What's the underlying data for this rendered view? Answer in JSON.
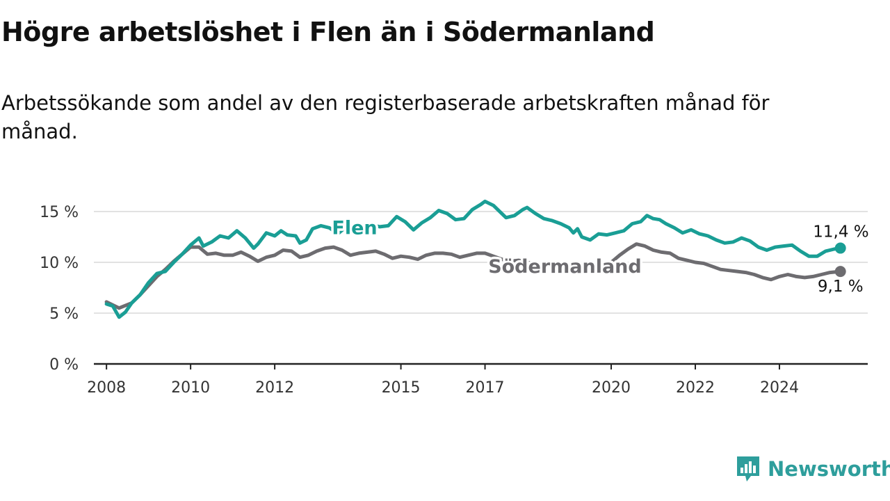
{
  "title": "Högre arbetslöshet i Flen än i Södermanland",
  "subtitle": "Arbetssökande som andel av den registerbaserade arbetskraften månad för månad.",
  "brand": {
    "name": "Newsworthy",
    "icon": "newsworthy-logo-icon",
    "color": "#2e9e9c"
  },
  "chart_data": {
    "type": "line",
    "title": "Högre arbetslöshet i Flen än i Södermanland",
    "subtitle": "Arbetssökande som andel av den registerbaserade arbetskraften månad för månad.",
    "x_ticks": [
      2008,
      2010,
      2012,
      2015,
      2017,
      2020,
      2022,
      2024
    ],
    "y_ticks": [
      0,
      5,
      10,
      15
    ],
    "y_tick_labels": [
      "0 %",
      "5 %",
      "10 %",
      "15 %"
    ],
    "xlim": [
      2007.7,
      2026.1
    ],
    "ylim": [
      0,
      15
    ],
    "grid": true,
    "legend": "inline labels",
    "series": [
      {
        "name": "Flen",
        "color": "#1a9e95",
        "end_label": "11,4 %",
        "points": [
          [
            2008.0,
            5.9
          ],
          [
            2008.15,
            5.7
          ],
          [
            2008.3,
            4.6
          ],
          [
            2008.45,
            5.1
          ],
          [
            2008.6,
            6.0
          ],
          [
            2008.8,
            6.8
          ],
          [
            2009.0,
            8.0
          ],
          [
            2009.2,
            8.9
          ],
          [
            2009.4,
            9.1
          ],
          [
            2009.6,
            10.0
          ],
          [
            2009.8,
            10.8
          ],
          [
            2010.0,
            11.7
          ],
          [
            2010.2,
            12.4
          ],
          [
            2010.3,
            11.6
          ],
          [
            2010.5,
            12.0
          ],
          [
            2010.7,
            12.6
          ],
          [
            2010.9,
            12.4
          ],
          [
            2011.1,
            13.1
          ],
          [
            2011.3,
            12.4
          ],
          [
            2011.5,
            11.4
          ],
          [
            2011.6,
            11.8
          ],
          [
            2011.8,
            12.9
          ],
          [
            2012.0,
            12.6
          ],
          [
            2012.15,
            13.1
          ],
          [
            2012.3,
            12.7
          ],
          [
            2012.5,
            12.6
          ],
          [
            2012.6,
            11.9
          ],
          [
            2012.75,
            12.2
          ],
          [
            2012.9,
            13.3
          ],
          [
            2013.1,
            13.6
          ],
          [
            2013.3,
            13.4
          ],
          [
            2013.5,
            12.8
          ],
          [
            2013.7,
            13.5
          ],
          [
            2013.9,
            13.3
          ],
          [
            2014.1,
            13.4
          ],
          [
            2014.3,
            13.7
          ],
          [
            2014.5,
            13.5
          ],
          [
            2014.7,
            13.6
          ],
          [
            2014.9,
            14.5
          ],
          [
            2015.1,
            14.0
          ],
          [
            2015.3,
            13.2
          ],
          [
            2015.5,
            13.9
          ],
          [
            2015.7,
            14.4
          ],
          [
            2015.9,
            15.1
          ],
          [
            2016.1,
            14.8
          ],
          [
            2016.3,
            14.2
          ],
          [
            2016.5,
            14.3
          ],
          [
            2016.7,
            15.2
          ],
          [
            2016.9,
            15.7
          ],
          [
            2017.0,
            16.0
          ],
          [
            2017.2,
            15.6
          ],
          [
            2017.4,
            14.8
          ],
          [
            2017.5,
            14.4
          ],
          [
            2017.7,
            14.6
          ],
          [
            2017.9,
            15.2
          ],
          [
            2018.0,
            15.4
          ],
          [
            2018.2,
            14.8
          ],
          [
            2018.4,
            14.3
          ],
          [
            2018.6,
            14.1
          ],
          [
            2018.8,
            13.8
          ],
          [
            2019.0,
            13.4
          ],
          [
            2019.1,
            12.9
          ],
          [
            2019.2,
            13.3
          ],
          [
            2019.3,
            12.5
          ],
          [
            2019.5,
            12.2
          ],
          [
            2019.7,
            12.8
          ],
          [
            2019.9,
            12.7
          ],
          [
            2020.1,
            12.9
          ],
          [
            2020.3,
            13.1
          ],
          [
            2020.5,
            13.8
          ],
          [
            2020.7,
            14.0
          ],
          [
            2020.85,
            14.6
          ],
          [
            2021.0,
            14.3
          ],
          [
            2021.15,
            14.2
          ],
          [
            2021.3,
            13.8
          ],
          [
            2021.5,
            13.4
          ],
          [
            2021.7,
            12.9
          ],
          [
            2021.9,
            13.2
          ],
          [
            2022.1,
            12.8
          ],
          [
            2022.3,
            12.6
          ],
          [
            2022.5,
            12.2
          ],
          [
            2022.7,
            11.9
          ],
          [
            2022.9,
            12.0
          ],
          [
            2023.1,
            12.4
          ],
          [
            2023.3,
            12.1
          ],
          [
            2023.5,
            11.5
          ],
          [
            2023.7,
            11.2
          ],
          [
            2023.9,
            11.5
          ],
          [
            2024.1,
            11.6
          ],
          [
            2024.3,
            11.7
          ],
          [
            2024.5,
            11.1
          ],
          [
            2024.7,
            10.6
          ],
          [
            2024.9,
            10.6
          ],
          [
            2025.1,
            11.1
          ],
          [
            2025.3,
            11.3
          ],
          [
            2025.45,
            11.4
          ]
        ]
      },
      {
        "name": "Södermanland",
        "color": "#6d6c70",
        "end_label": "9,1 %",
        "points": [
          [
            2008.0,
            6.1
          ],
          [
            2008.3,
            5.5
          ],
          [
            2008.6,
            6.0
          ],
          [
            2008.8,
            6.8
          ],
          [
            2009.0,
            7.7
          ],
          [
            2009.2,
            8.6
          ],
          [
            2009.4,
            9.3
          ],
          [
            2009.6,
            10.1
          ],
          [
            2009.8,
            10.8
          ],
          [
            2010.0,
            11.5
          ],
          [
            2010.2,
            11.5
          ],
          [
            2010.4,
            10.8
          ],
          [
            2010.6,
            10.9
          ],
          [
            2010.8,
            10.7
          ],
          [
            2011.0,
            10.7
          ],
          [
            2011.2,
            11.0
          ],
          [
            2011.4,
            10.6
          ],
          [
            2011.6,
            10.1
          ],
          [
            2011.8,
            10.5
          ],
          [
            2012.0,
            10.7
          ],
          [
            2012.2,
            11.2
          ],
          [
            2012.4,
            11.1
          ],
          [
            2012.6,
            10.5
          ],
          [
            2012.8,
            10.7
          ],
          [
            2013.0,
            11.1
          ],
          [
            2013.2,
            11.4
          ],
          [
            2013.4,
            11.5
          ],
          [
            2013.6,
            11.2
          ],
          [
            2013.8,
            10.7
          ],
          [
            2014.0,
            10.9
          ],
          [
            2014.2,
            11.0
          ],
          [
            2014.4,
            11.1
          ],
          [
            2014.6,
            10.8
          ],
          [
            2014.8,
            10.4
          ],
          [
            2015.0,
            10.6
          ],
          [
            2015.2,
            10.5
          ],
          [
            2015.4,
            10.3
          ],
          [
            2015.6,
            10.7
          ],
          [
            2015.8,
            10.9
          ],
          [
            2016.0,
            10.9
          ],
          [
            2016.2,
            10.8
          ],
          [
            2016.4,
            10.5
          ],
          [
            2016.6,
            10.7
          ],
          [
            2016.8,
            10.9
          ],
          [
            2017.0,
            10.9
          ],
          [
            2017.2,
            10.6
          ],
          [
            2017.4,
            10.3
          ],
          [
            2017.6,
            10.1
          ],
          [
            2017.8,
            10.2
          ],
          [
            2018.0,
            10.0
          ],
          [
            2018.3,
            9.8
          ],
          [
            2018.6,
            9.8
          ],
          [
            2019.0,
            9.6
          ],
          [
            2019.4,
            9.5
          ],
          [
            2019.8,
            9.6
          ],
          [
            2020.0,
            10.0
          ],
          [
            2020.2,
            10.7
          ],
          [
            2020.4,
            11.3
          ],
          [
            2020.6,
            11.8
          ],
          [
            2020.8,
            11.6
          ],
          [
            2021.0,
            11.2
          ],
          [
            2021.2,
            11.0
          ],
          [
            2021.4,
            10.9
          ],
          [
            2021.6,
            10.4
          ],
          [
            2021.8,
            10.2
          ],
          [
            2022.0,
            10.0
          ],
          [
            2022.2,
            9.9
          ],
          [
            2022.4,
            9.6
          ],
          [
            2022.6,
            9.3
          ],
          [
            2022.8,
            9.2
          ],
          [
            2023.0,
            9.1
          ],
          [
            2023.2,
            9.0
          ],
          [
            2023.4,
            8.8
          ],
          [
            2023.6,
            8.5
          ],
          [
            2023.8,
            8.3
          ],
          [
            2024.0,
            8.6
          ],
          [
            2024.2,
            8.8
          ],
          [
            2024.4,
            8.6
          ],
          [
            2024.6,
            8.5
          ],
          [
            2024.8,
            8.6
          ],
          [
            2025.0,
            8.8
          ],
          [
            2025.2,
            9.0
          ],
          [
            2025.45,
            9.1
          ]
        ]
      }
    ]
  }
}
